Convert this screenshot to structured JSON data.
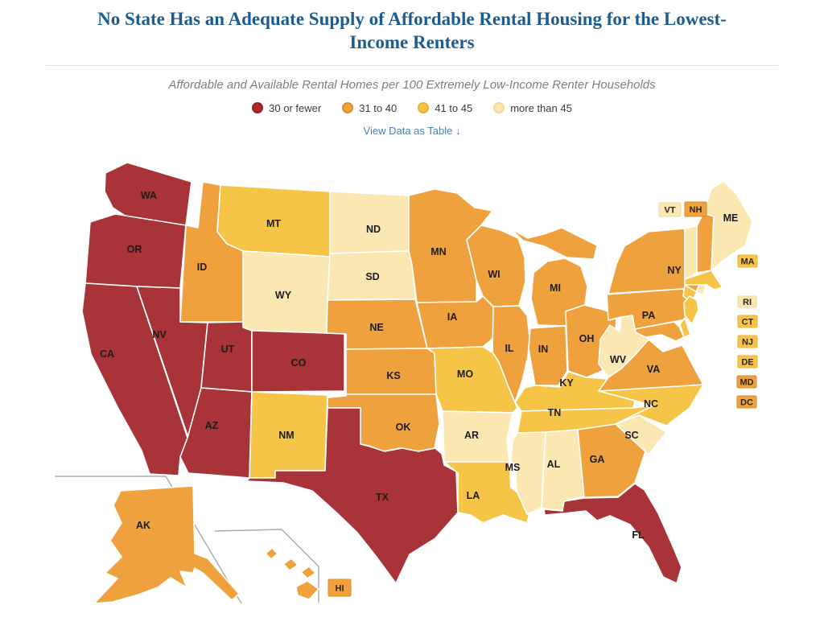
{
  "header": {
    "table_link": "View Data as Table ↓"
  },
  "legend": {
    "items": [
      {
        "label": "30 or fewer",
        "color": "#B2262E",
        "ring": "#8F2127"
      },
      {
        "label": "31 to 40",
        "color": "#EEA13D",
        "ring": "#DE8E2C"
      },
      {
        "label": "41 to 45",
        "color": "#F6C548",
        "ring": "#E8B232"
      },
      {
        "label": "more than 45",
        "color": "#FAE7B2",
        "ring": "#F1DA9B"
      }
    ]
  },
  "chart_data": {
    "type": "choropleth",
    "map": "united-states",
    "title": "No State Has an Adequate Supply of Affordable Rental Housing for the Lowest-Income Renters",
    "subtitle": "Affordable and Available Rental Homes per 100 Extremely Low-Income Renter Households",
    "categories": [
      "30 or fewer",
      "31 to 40",
      "41 to 45",
      "more than 45"
    ],
    "category_colors": {
      "30 or fewer": "#A83338",
      "31 to 40": "#EEA13D",
      "41 to 45": "#F6C548",
      "more than 45": "#FAE7B2"
    },
    "category_borders": {
      "30 or fewer": "#8F2127",
      "31 to 40": "#DE8E2C",
      "41 to 45": "#E8B232",
      "more than 45": "#EED9A0"
    },
    "states": {
      "WA": "30 or fewer",
      "OR": "30 or fewer",
      "CA": "30 or fewer",
      "NV": "30 or fewer",
      "AZ": "30 or fewer",
      "UT": "30 or fewer",
      "CO": "30 or fewer",
      "TX": "30 or fewer",
      "FL": "30 or fewer",
      "ID": "31 to 40",
      "NE": "31 to 40",
      "KS": "31 to 40",
      "OK": "31 to 40",
      "MN": "31 to 40",
      "IA": "31 to 40",
      "WI": "31 to 40",
      "MI": "31 to 40",
      "IL": "31 to 40",
      "IN": "31 to 40",
      "OH": "31 to 40",
      "PA": "31 to 40",
      "NY": "31 to 40",
      "VA": "31 to 40",
      "GA": "31 to 40",
      "AK": "31 to 40",
      "HI": "31 to 40",
      "NH": "31 to 40",
      "MD": "31 to 40",
      "DC": "31 to 40",
      "MT": "41 to 45",
      "NM": "41 to 45",
      "MO": "41 to 45",
      "LA": "41 to 45",
      "KY": "41 to 45",
      "TN": "41 to 45",
      "NC": "41 to 45",
      "MA": "41 to 45",
      "CT": "41 to 45",
      "NJ": "41 to 45",
      "DE": "41 to 45",
      "WY": "more than 45",
      "ND": "more than 45",
      "SD": "more than 45",
      "AR": "more than 45",
      "MS": "more than 45",
      "AL": "more than 45",
      "SC": "more than 45",
      "WV": "more than 45",
      "ME": "more than 45",
      "VT": "more than 45",
      "RI": "more than 45"
    }
  }
}
